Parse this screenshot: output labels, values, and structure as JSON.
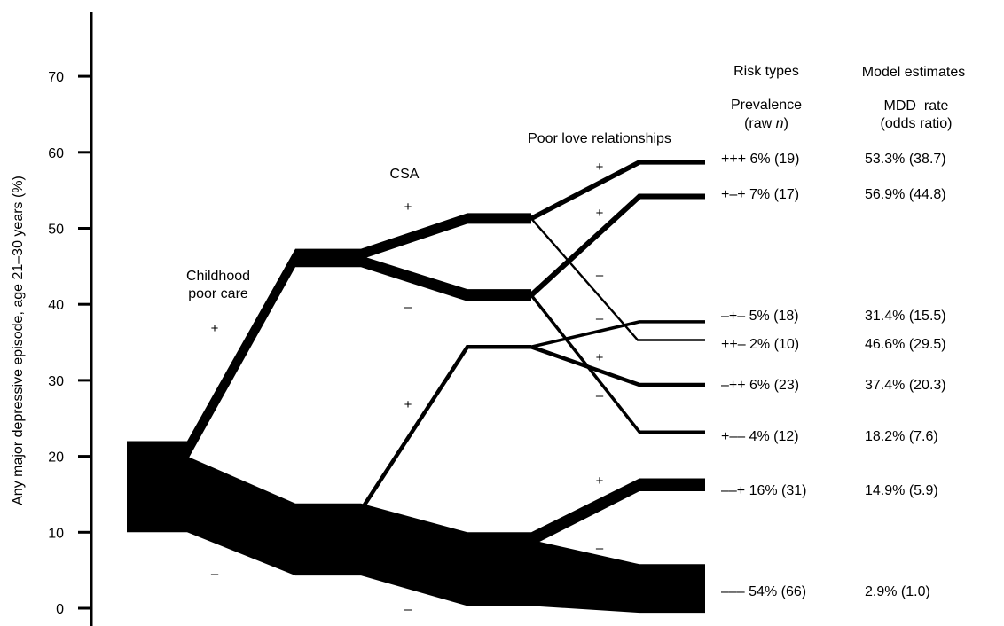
{
  "chart_data": {
    "type": "area",
    "ylabel": "Any major depressive episode, age 21–30 years (%)",
    "ylim": [
      0,
      70
    ],
    "y_ticks": [
      "0",
      "10",
      "20",
      "30",
      "40",
      "50",
      "60",
      "70"
    ],
    "stage_labels": {
      "childhood": [
        "Childhood",
        "poor care"
      ],
      "csa": "CSA",
      "love": "Poor love relationships"
    },
    "table_headers": {
      "risk_types": "Risk types",
      "model_estimates": "Model estimates",
      "prevalence": "Prevalence",
      "raw_n_prefix": "(raw ",
      "raw_n_var": "n",
      "raw_n_suffix": ")",
      "mdd_rate": "MDD  rate",
      "odds_ratio": "(odds ratio)"
    },
    "signs": {
      "childhood_plus": "+",
      "childhood_minus": "–",
      "csa_plus_high": "+",
      "csa_minus_high": "–",
      "csa_plus_low": "+",
      "csa_minus_low": "–",
      "love_pp_plus": "+",
      "love_pp_minus": "–",
      "love_pm_plus": "+",
      "love_pm_minus": "–",
      "love_mp_plus": "+",
      "love_mp_minus": "–",
      "love_mm_plus": "+",
      "love_mm_minus": "–"
    },
    "stages": [
      "Childhood poor care",
      "CSA",
      "Poor love relationships"
    ],
    "nodes": {
      "root": 16,
      "care_plus": 46.3,
      "care_minus": 9,
      "care_plus_csa_plus": 51.3,
      "care_plus_csa_minus": 41.2,
      "care_minus_csa_plus": 34.4,
      "care_minus_csa_minus": 4.8
    },
    "risk_types": [
      {
        "code": "+++",
        "label": "+++ 6% (19)",
        "prevalence_pct": 6,
        "raw_n": 19,
        "mdd_rate_pct": 53.3,
        "odds_ratio": 38.7,
        "estimate_label": "53.3% (38.7)",
        "endpoint": 58.7
      },
      {
        "code": "+–+",
        "label": "+–+ 7% (17)",
        "prevalence_pct": 7,
        "raw_n": 17,
        "mdd_rate_pct": 56.9,
        "odds_ratio": 44.8,
        "estimate_label": "56.9% (44.8)",
        "endpoint": 54.2
      },
      {
        "code": "–+–",
        "label": "–+– 5% (18)",
        "prevalence_pct": 5,
        "raw_n": 18,
        "mdd_rate_pct": 31.4,
        "odds_ratio": 15.5,
        "estimate_label": "31.4% (15.5)",
        "endpoint": 37.7
      },
      {
        "code": "++–",
        "label": "++– 2% (10)",
        "prevalence_pct": 2,
        "raw_n": 10,
        "mdd_rate_pct": 46.6,
        "odds_ratio": 29.5,
        "estimate_label": "46.6% (29.5)",
        "endpoint": 35.3
      },
      {
        "code": "–++",
        "label": "–++ 6% (23)",
        "prevalence_pct": 6,
        "raw_n": 23,
        "mdd_rate_pct": 37.4,
        "odds_ratio": 20.3,
        "estimate_label": "37.4% (20.3)",
        "endpoint": 29.4
      },
      {
        "code": "+––",
        "label": "+–– 4% (12)",
        "prevalence_pct": 4,
        "raw_n": 12,
        "mdd_rate_pct": 18.2,
        "odds_ratio": 7.6,
        "estimate_label": "18.2% (7.6)",
        "endpoint": 23.2
      },
      {
        "code": "––+",
        "label": "––+ 16% (31)",
        "prevalence_pct": 16,
        "raw_n": 31,
        "mdd_rate_pct": 14.9,
        "odds_ratio": 5.9,
        "estimate_label": "14.9% (5.9)",
        "endpoint": 16.2
      },
      {
        "code": "–––",
        "label": "––– 54% (66)",
        "prevalence_pct": 54,
        "raw_n": 66,
        "mdd_rate_pct": 2.9,
        "odds_ratio": 1.0,
        "estimate_label": "2.9% (1.0)",
        "endpoint": 2.6
      }
    ]
  }
}
